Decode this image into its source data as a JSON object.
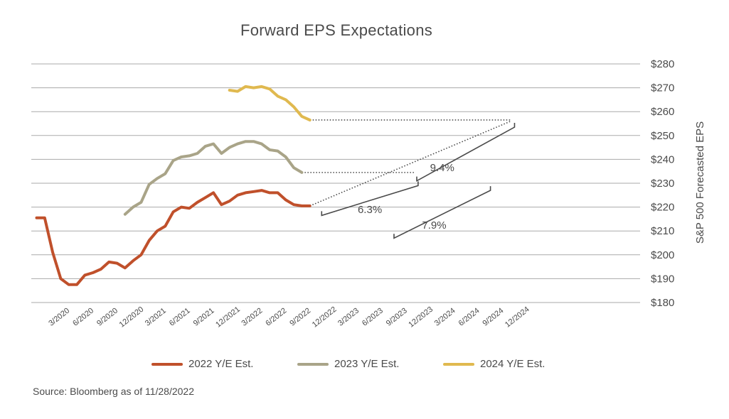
{
  "chart_data": {
    "type": "line",
    "title": "Forward EPS Expectations",
    "ylabel": "S&P 500 Forecasted EPS",
    "xlabel": "",
    "ylim": [
      180,
      280
    ],
    "yticks": [
      180,
      190,
      200,
      210,
      220,
      230,
      240,
      250,
      260,
      270,
      280
    ],
    "ytick_labels": [
      "$180",
      "$190",
      "$200",
      "$210",
      "$220",
      "$230",
      "$240",
      "$250",
      "$260",
      "$270",
      "$280"
    ],
    "x_tick_labels": [
      "3/2020",
      "6/2020",
      "9/2020",
      "12/2020",
      "3/2021",
      "6/2021",
      "9/2021",
      "12/2021",
      "3/2022",
      "6/2022",
      "9/2022",
      "12/2022",
      "3/2023",
      "6/2023",
      "9/2023",
      "12/2023",
      "3/2024",
      "6/2024",
      "9/2024",
      "12/2024"
    ],
    "grid": true,
    "legend_position": "bottom",
    "series": [
      {
        "name": "2022 Y/E Est.",
        "color": "#c0502b",
        "points": [
          [
            "2020-01-01",
            215.5
          ],
          [
            "2020-02-01",
            215.5
          ],
          [
            "2020-03-01",
            201.0
          ],
          [
            "2020-04-01",
            190.0
          ],
          [
            "2020-05-01",
            187.5
          ],
          [
            "2020-06-01",
            187.5
          ],
          [
            "2020-07-01",
            191.5
          ],
          [
            "2020-08-01",
            192.5
          ],
          [
            "2020-09-01",
            194.0
          ],
          [
            "2020-10-01",
            197.0
          ],
          [
            "2020-11-01",
            196.5
          ],
          [
            "2020-12-01",
            194.5
          ],
          [
            "2021-01-01",
            197.5
          ],
          [
            "2021-02-01",
            200.0
          ],
          [
            "2021-03-01",
            206.0
          ],
          [
            "2021-04-01",
            210.0
          ],
          [
            "2021-05-01",
            212.0
          ],
          [
            "2021-06-01",
            218.0
          ],
          [
            "2021-07-01",
            220.0
          ],
          [
            "2021-08-01",
            219.5
          ],
          [
            "2021-09-01",
            222.0
          ],
          [
            "2021-10-01",
            224.0
          ],
          [
            "2021-11-01",
            226.0
          ],
          [
            "2021-12-01",
            221.0
          ],
          [
            "2022-01-01",
            222.5
          ],
          [
            "2022-02-01",
            225.0
          ],
          [
            "2022-03-01",
            226.0
          ],
          [
            "2022-04-01",
            226.5
          ],
          [
            "2022-05-01",
            227.0
          ],
          [
            "2022-06-01",
            226.0
          ],
          [
            "2022-07-01",
            226.0
          ],
          [
            "2022-08-01",
            223.0
          ],
          [
            "2022-09-01",
            221.0
          ],
          [
            "2022-10-01",
            220.5
          ],
          [
            "2022-11-01",
            220.5
          ]
        ]
      },
      {
        "name": "2023 Y/E Est.",
        "color": "#a9a488",
        "points": [
          [
            "2020-12-01",
            217.0
          ],
          [
            "2021-01-01",
            220.0
          ],
          [
            "2021-02-01",
            222.0
          ],
          [
            "2021-03-01",
            229.5
          ],
          [
            "2021-04-01",
            232.0
          ],
          [
            "2021-05-01",
            234.0
          ],
          [
            "2021-06-01",
            239.5
          ],
          [
            "2021-07-01",
            241.0
          ],
          [
            "2021-08-01",
            241.5
          ],
          [
            "2021-09-01",
            242.5
          ],
          [
            "2021-10-01",
            245.5
          ],
          [
            "2021-11-01",
            246.5
          ],
          [
            "2021-12-01",
            242.5
          ],
          [
            "2022-01-01",
            245.0
          ],
          [
            "2022-02-01",
            246.5
          ],
          [
            "2022-03-01",
            247.5
          ],
          [
            "2022-04-01",
            247.5
          ],
          [
            "2022-05-01",
            246.5
          ],
          [
            "2022-06-01",
            244.0
          ],
          [
            "2022-07-01",
            243.5
          ],
          [
            "2022-08-01",
            241.0
          ],
          [
            "2022-09-01",
            236.5
          ],
          [
            "2022-10-01",
            234.5
          ]
        ]
      },
      {
        "name": "2024 Y/E Est.",
        "color": "#e0b94f",
        "points": [
          [
            "2022-01-01",
            269.0
          ],
          [
            "2022-02-01",
            268.5
          ],
          [
            "2022-03-01",
            270.5
          ],
          [
            "2022-04-01",
            270.0
          ],
          [
            "2022-05-01",
            270.5
          ],
          [
            "2022-06-01",
            269.5
          ],
          [
            "2022-07-01",
            266.5
          ],
          [
            "2022-08-01",
            265.0
          ],
          [
            "2022-09-01",
            262.0
          ],
          [
            "2022-10-01",
            258.0
          ],
          [
            "2022-11-01",
            256.5
          ]
        ]
      }
    ],
    "projections": [
      {
        "from": [
          "2022-11-01",
          256.5
        ],
        "to": [
          "2024-12-01",
          256.5
        ]
      },
      {
        "from": [
          "2022-10-01",
          234.5
        ],
        "to": [
          "2023-12-01",
          234.5
        ]
      },
      {
        "from": [
          "2022-11-01",
          220.5
        ],
        "to": [
          "2024-12-01",
          256.0
        ]
      }
    ],
    "annotations": [
      {
        "label": "6.3%",
        "bracket": [
          [
            "2022-12-15",
            216.5
          ],
          [
            "2023-12-15",
            229.0
          ]
        ],
        "label_at": [
          "2023-06-15",
          217.5
        ]
      },
      {
        "label": "9.4%",
        "bracket": [
          [
            "2023-12-10",
            231.0
          ],
          [
            "2024-12-15",
            253.5
          ]
        ],
        "label_at": [
          "2024-03-15",
          235.0
        ]
      },
      {
        "label": "7.9%",
        "bracket": [
          [
            "2023-09-15",
            207.0
          ],
          [
            "2024-09-15",
            227.0
          ]
        ],
        "label_at": [
          "2024-02-15",
          211.0
        ]
      }
    ]
  },
  "legend": [
    {
      "label": "2022 Y/E Est.",
      "color": "#c0502b"
    },
    {
      "label": "2023 Y/E Est.",
      "color": "#a9a488"
    },
    {
      "label": "2024 Y/E Est.",
      "color": "#e0b94f"
    }
  ],
  "source": "Source: Bloomberg as of 11/28/2022",
  "colors": {
    "grid": "#aaaaaa",
    "text": "#4a4a4a",
    "annotation": "#4a4a4a"
  }
}
